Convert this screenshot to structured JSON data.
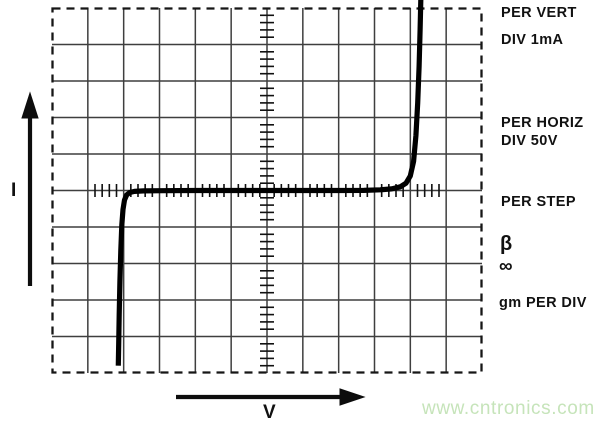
{
  "figure": {
    "description": "Curve tracer graticule showing reverse/forward breakdown I-V characteristic"
  },
  "labels": {
    "i_axis": "I",
    "v_axis": "V",
    "per_vert_line1": "PER VERT",
    "per_vert_line2": "DIV 1mA",
    "per_horiz_line1": "PER HORIZ",
    "per_horiz_line2": "DIV 50V",
    "per_step": "PER STEP",
    "beta": "β",
    "infinity": "∞",
    "gm_per_div": "gm PER DIV"
  },
  "watermark": {
    "text": "www.cntronics.com",
    "color": "#c6e4ba"
  },
  "colors": {
    "curve": "#000000",
    "grid": "#3f3f3f",
    "border": "#161616",
    "ticks": "#111111",
    "arrows": "#0d0d0d",
    "background": "#ffffff"
  },
  "chart_data": {
    "type": "line",
    "title": "",
    "xlabel": "V",
    "ylabel": "I",
    "x_volts_per_div": 50,
    "y_ma_per_div": 1,
    "readout": {
      "per_vert": "DIV 1mA",
      "per_horiz": "DIV 50V",
      "per_step": "",
      "beta": "∞",
      "gm_per_div": ""
    },
    "graticule": {
      "cols": 12,
      "rows": 10,
      "ticked_axis_span_divs": 10,
      "minor_ticks_per_div": 5,
      "border_style": "dashed",
      "grid": true
    },
    "xlim_volts": [
      -300,
      300
    ],
    "ylim_ma": [
      -5,
      5
    ],
    "series": [
      {
        "name": "iv-breakdown-curve",
        "points_v_ma": [
          [
            -207.5,
            -4.8
          ],
          [
            -207.0,
            -4.2
          ],
          [
            -206.2,
            -3.4
          ],
          [
            -205.2,
            -2.5
          ],
          [
            -204.0,
            -1.65
          ],
          [
            -202.6,
            -0.95
          ],
          [
            -201.0,
            -0.52
          ],
          [
            -198.8,
            -0.26
          ],
          [
            -195.8,
            -0.12
          ],
          [
            -191.5,
            -0.055
          ],
          [
            -185.0,
            -0.025
          ],
          [
            -172.0,
            -0.012
          ],
          [
            -145.0,
            -0.006
          ],
          [
            -100.0,
            0
          ],
          [
            -50.0,
            0
          ],
          [
            0,
            0
          ],
          [
            50.0,
            0
          ],
          [
            100.0,
            0
          ],
          [
            135.0,
            0.004
          ],
          [
            158.0,
            0.018
          ],
          [
            174.0,
            0.045
          ],
          [
            186.0,
            0.1
          ],
          [
            194.0,
            0.2
          ],
          [
            200.0,
            0.4
          ],
          [
            204.5,
            0.8
          ],
          [
            207.8,
            1.5
          ],
          [
            210.3,
            2.4
          ],
          [
            212.2,
            3.4
          ],
          [
            213.6,
            4.4
          ],
          [
            214.6,
            5.22
          ]
        ]
      }
    ]
  }
}
